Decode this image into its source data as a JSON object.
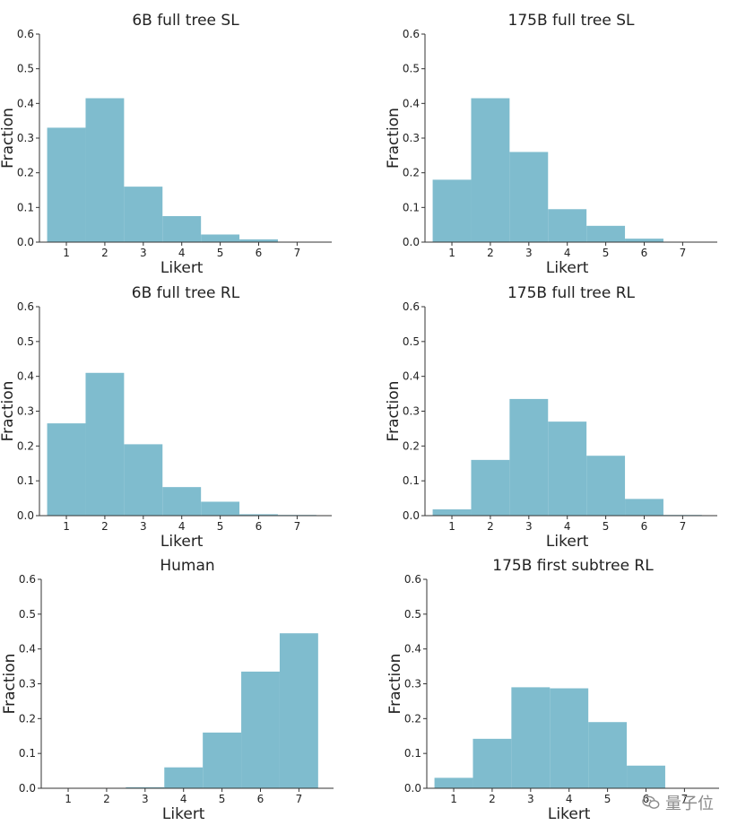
{
  "chart_data": [
    {
      "type": "bar",
      "title": "6B full tree SL",
      "xlabel": "Likert",
      "ylabel": "Fraction",
      "categories": [
        "1",
        "2",
        "3",
        "4",
        "5",
        "6",
        "7"
      ],
      "values": [
        0.33,
        0.415,
        0.16,
        0.075,
        0.022,
        0.008,
        0.0
      ],
      "ylim": [
        0,
        0.6
      ],
      "yticks": [
        "0.0",
        "0.1",
        "0.2",
        "0.3",
        "0.4",
        "0.5",
        "0.6"
      ]
    },
    {
      "type": "bar",
      "title": "175B full tree SL",
      "xlabel": "Likert",
      "ylabel": "Fraction",
      "categories": [
        "1",
        "2",
        "3",
        "4",
        "5",
        "6",
        "7"
      ],
      "values": [
        0.18,
        0.415,
        0.26,
        0.095,
        0.047,
        0.01,
        0.0
      ],
      "ylim": [
        0,
        0.6
      ],
      "yticks": [
        "0.0",
        "0.1",
        "0.2",
        "0.3",
        "0.4",
        "0.5",
        "0.6"
      ]
    },
    {
      "type": "bar",
      "title": "6B full tree RL",
      "xlabel": "Likert",
      "ylabel": "Fraction",
      "categories": [
        "1",
        "2",
        "3",
        "4",
        "5",
        "6",
        "7"
      ],
      "values": [
        0.265,
        0.41,
        0.205,
        0.082,
        0.04,
        0.004,
        0.002
      ],
      "ylim": [
        0,
        0.6
      ],
      "yticks": [
        "0.0",
        "0.1",
        "0.2",
        "0.3",
        "0.4",
        "0.5",
        "0.6"
      ]
    },
    {
      "type": "bar",
      "title": "175B full tree RL",
      "xlabel": "Likert",
      "ylabel": "Fraction",
      "categories": [
        "1",
        "2",
        "3",
        "4",
        "5",
        "6",
        "7"
      ],
      "values": [
        0.018,
        0.16,
        0.335,
        0.27,
        0.172,
        0.048,
        0.002
      ],
      "ylim": [
        0,
        0.6
      ],
      "yticks": [
        "0.0",
        "0.1",
        "0.2",
        "0.3",
        "0.4",
        "0.5",
        "0.6"
      ]
    },
    {
      "type": "bar",
      "title": "Human",
      "xlabel": "Likert",
      "ylabel": "Fraction",
      "categories": [
        "1",
        "2",
        "3",
        "4",
        "5",
        "6",
        "7"
      ],
      "values": [
        0.0,
        0.0,
        0.003,
        0.06,
        0.16,
        0.335,
        0.445
      ],
      "ylim": [
        0,
        0.6
      ],
      "yticks": [
        "0.0",
        "0.1",
        "0.2",
        "0.3",
        "0.4",
        "0.5",
        "0.6"
      ]
    },
    {
      "type": "bar",
      "title": "175B first subtree RL",
      "xlabel": "Likert",
      "ylabel": "Fraction",
      "categories": [
        "1",
        "2",
        "3",
        "4",
        "5",
        "6",
        "7"
      ],
      "values": [
        0.03,
        0.142,
        0.29,
        0.287,
        0.19,
        0.065,
        0.0
      ],
      "ylim": [
        0,
        0.6
      ],
      "yticks": [
        "0.0",
        "0.1",
        "0.2",
        "0.3",
        "0.4",
        "0.5",
        "0.6"
      ]
    }
  ],
  "colors": {
    "bar": "#7fbcce",
    "axis": "#333333",
    "text": "#222222"
  },
  "watermark": {
    "text": "量子位",
    "icon": "wechat-icon"
  }
}
